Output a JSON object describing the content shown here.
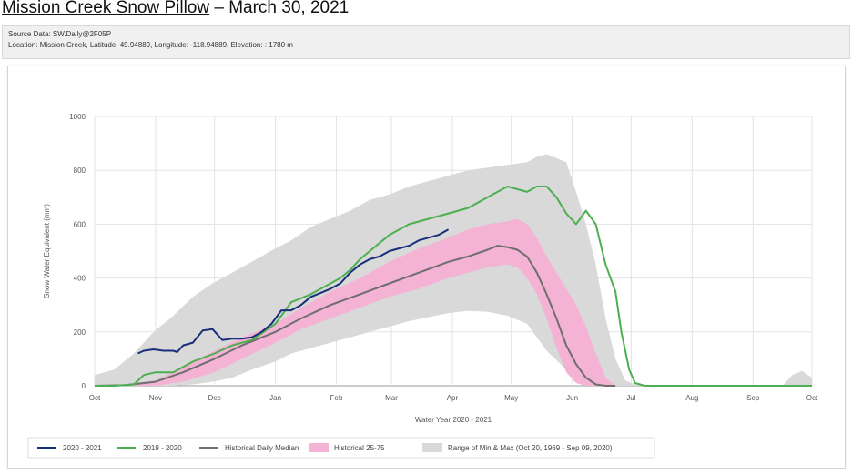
{
  "header": {
    "title_link": "Mission Creek Snow Pillow",
    "title_rest": " – March 30, 2021"
  },
  "info": {
    "source": "Source Data: SW.Daily@2F05P",
    "location": "Location: Mission Creek, Latitude: 49.94889, Longitude: -118.94889, Elevation: : 1780 m"
  },
  "chart_data": {
    "type": "line",
    "xlabel": "Water Year 2020 - 2021",
    "ylabel": "Snow Water Equivalent (mm)",
    "ylim": [
      0,
      1000
    ],
    "yticks": [
      0,
      200,
      400,
      600,
      800,
      1000
    ],
    "xlim_day": [
      0,
      365
    ],
    "xticks": [
      {
        "label": "Oct",
        "day": 0
      },
      {
        "label": "Nov",
        "day": 31
      },
      {
        "label": "Dec",
        "day": 61
      },
      {
        "label": "Jan",
        "day": 92
      },
      {
        "label": "Feb",
        "day": 123
      },
      {
        "label": "Mar",
        "day": 151
      },
      {
        "label": "Apr",
        "day": 182
      },
      {
        "label": "May",
        "day": 212
      },
      {
        "label": "Jun",
        "day": 243
      },
      {
        "label": "Jul",
        "day": 273
      },
      {
        "label": "Aug",
        "day": 304
      },
      {
        "label": "Sep",
        "day": 335
      },
      {
        "label": "Oct",
        "day": 365
      }
    ],
    "grid": true,
    "legend_position": "bottom",
    "series": [
      {
        "name": "Range of Min & Max (Oct 20, 1969 - Sep 09, 2020)",
        "kind": "band",
        "color": "#d9d9d9",
        "x": [
          0,
          10,
          20,
          30,
          40,
          50,
          60,
          70,
          80,
          92,
          100,
          110,
          120,
          130,
          140,
          150,
          160,
          170,
          180,
          190,
          200,
          210,
          220,
          225,
          230,
          240,
          245,
          250,
          255,
          260,
          265,
          270,
          275,
          280,
          300,
          330,
          350,
          355,
          360,
          365
        ],
        "low": [
          0,
          0,
          0,
          0,
          0,
          5,
          15,
          30,
          60,
          90,
          120,
          140,
          160,
          180,
          200,
          220,
          240,
          255,
          270,
          278,
          275,
          260,
          230,
          180,
          130,
          60,
          20,
          0,
          0,
          0,
          0,
          0,
          0,
          0,
          0,
          0,
          0,
          0,
          0,
          0
        ],
        "high": [
          40,
          60,
          120,
          200,
          260,
          330,
          380,
          420,
          460,
          510,
          540,
          590,
          620,
          650,
          690,
          710,
          740,
          760,
          780,
          800,
          810,
          820,
          830,
          850,
          860,
          830,
          720,
          600,
          450,
          250,
          100,
          20,
          5,
          0,
          0,
          0,
          0,
          40,
          55,
          30
        ]
      },
      {
        "name": "Historical 25-75",
        "kind": "band",
        "color": "#f4b3d4",
        "x": [
          0,
          15,
          31,
          45,
          61,
          75,
          92,
          105,
          120,
          135,
          150,
          165,
          180,
          190,
          200,
          210,
          215,
          220,
          225,
          230,
          235,
          240,
          245,
          250,
          255,
          260,
          265
        ],
        "low": [
          0,
          0,
          0,
          15,
          50,
          100,
          160,
          210,
          250,
          290,
          330,
          360,
          400,
          420,
          440,
          450,
          440,
          400,
          340,
          250,
          140,
          50,
          10,
          0,
          0,
          0,
          0
        ],
        "high": [
          0,
          5,
          20,
          70,
          130,
          180,
          230,
          290,
          350,
          400,
          460,
          510,
          550,
          580,
          600,
          610,
          620,
          600,
          550,
          480,
          420,
          360,
          300,
          220,
          120,
          30,
          0
        ]
      },
      {
        "name": "Historical Daily Median",
        "kind": "line",
        "color": "#6e6e6e",
        "x": [
          0,
          15,
          31,
          45,
          61,
          75,
          92,
          105,
          120,
          135,
          150,
          165,
          180,
          190,
          200,
          205,
          210,
          215,
          220,
          225,
          230,
          235,
          240,
          245,
          250,
          255,
          260,
          265
        ],
        "y": [
          0,
          2,
          15,
          50,
          100,
          150,
          200,
          250,
          300,
          340,
          380,
          420,
          460,
          480,
          505,
          520,
          515,
          505,
          480,
          420,
          340,
          250,
          150,
          80,
          30,
          5,
          0,
          0
        ]
      },
      {
        "name": "2019 - 2020",
        "kind": "line",
        "color": "#4caf50",
        "x": [
          0,
          10,
          20,
          25,
          31,
          40,
          50,
          61,
          70,
          80,
          92,
          100,
          110,
          120,
          125,
          130,
          135,
          140,
          150,
          160,
          170,
          180,
          190,
          200,
          205,
          210,
          215,
          220,
          225,
          230,
          235,
          240,
          245,
          250,
          255,
          260,
          265,
          268,
          272,
          275,
          280,
          300,
          330,
          365
        ],
        "y": [
          0,
          0,
          5,
          40,
          50,
          50,
          90,
          120,
          150,
          170,
          230,
          310,
          340,
          380,
          400,
          430,
          470,
          500,
          560,
          600,
          620,
          640,
          660,
          700,
          720,
          740,
          730,
          720,
          740,
          740,
          700,
          640,
          600,
          650,
          600,
          450,
          350,
          200,
          60,
          10,
          0,
          0,
          0,
          0
        ]
      },
      {
        "name": "2020 - 2021",
        "kind": "line",
        "color": "#1a2f7a",
        "x": [
          22,
          25,
          30,
          35,
          40,
          42,
          45,
          50,
          55,
          60,
          65,
          70,
          75,
          80,
          85,
          90,
          95,
          100,
          105,
          110,
          115,
          120,
          125,
          130,
          135,
          140,
          145,
          150,
          155,
          160,
          165,
          170,
          175,
          180
        ],
        "y": [
          120,
          130,
          135,
          130,
          130,
          125,
          150,
          160,
          205,
          210,
          170,
          175,
          175,
          180,
          200,
          230,
          280,
          280,
          300,
          330,
          345,
          360,
          380,
          420,
          450,
          470,
          480,
          500,
          510,
          520,
          540,
          550,
          560,
          580
        ]
      }
    ],
    "legend": [
      {
        "label": "2020 - 2021",
        "kind": "line",
        "color": "#1a2f7a"
      },
      {
        "label": "2019 - 2020",
        "kind": "line",
        "color": "#4caf50"
      },
      {
        "label": "Historical Daily Median",
        "kind": "line",
        "color": "#6e6e6e"
      },
      {
        "label": "Historical 25-75",
        "kind": "box",
        "color": "#f4b3d4"
      },
      {
        "label": "Range of Min & Max (Oct 20, 1969 - Sep 09, 2020)",
        "kind": "box",
        "color": "#d9d9d9"
      }
    ]
  }
}
